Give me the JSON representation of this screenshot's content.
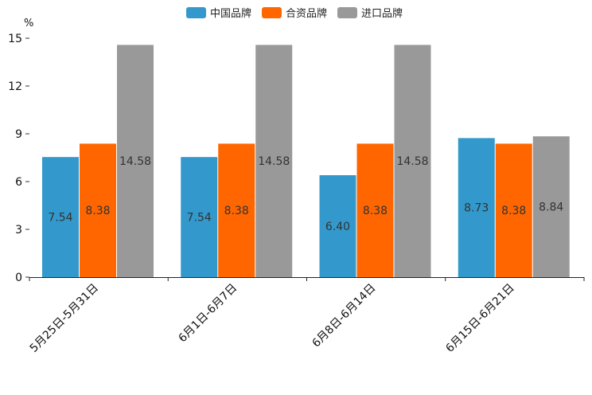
{
  "chart_data": {
    "type": "bar",
    "unit": "%",
    "categories": [
      "5月25日-5月31日",
      "6月1日-6月7日",
      "6月8日-6月14日",
      "6月15日-6月21日"
    ],
    "series": [
      {
        "name": "中国品牌",
        "color": "#3399CC",
        "values": [
          7.54,
          7.54,
          6.4,
          8.73
        ]
      },
      {
        "name": "合资品牌",
        "color": "#FF6600",
        "values": [
          8.38,
          8.38,
          8.38,
          8.38
        ]
      },
      {
        "name": "进口品牌",
        "color": "#999999",
        "values": [
          14.58,
          14.58,
          14.58,
          8.84
        ]
      }
    ],
    "ylim": [
      0,
      15
    ],
    "yticks": [
      0,
      3,
      6,
      9,
      12,
      15
    ],
    "legend_position": "top-center",
    "grid": false,
    "title": "",
    "xlabel": "",
    "ylabel": "%"
  }
}
